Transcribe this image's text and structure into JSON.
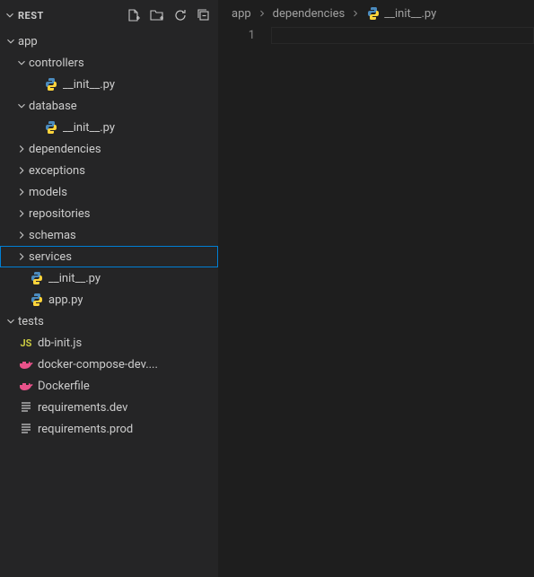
{
  "explorer": {
    "title": "REST",
    "tree": [
      {
        "label": "app",
        "kind": "folder",
        "expanded": true,
        "indent": 0
      },
      {
        "label": "controllers",
        "kind": "folder",
        "expanded": true,
        "indent": 1
      },
      {
        "label": "__init__.py",
        "kind": "python",
        "indent": 2
      },
      {
        "label": "database",
        "kind": "folder",
        "expanded": true,
        "indent": 1
      },
      {
        "label": "__init__.py",
        "kind": "python",
        "indent": 2
      },
      {
        "label": "dependencies",
        "kind": "folder",
        "expanded": false,
        "indent": 1
      },
      {
        "label": "exceptions",
        "kind": "folder",
        "expanded": false,
        "indent": 1
      },
      {
        "label": "models",
        "kind": "folder",
        "expanded": false,
        "indent": 1
      },
      {
        "label": "repositories",
        "kind": "folder",
        "expanded": false,
        "indent": 1
      },
      {
        "label": "schemas",
        "kind": "folder",
        "expanded": false,
        "indent": 1
      },
      {
        "label": "services",
        "kind": "folder",
        "expanded": false,
        "indent": 1,
        "selected": true
      },
      {
        "label": "__init__.py",
        "kind": "python",
        "indent": 1
      },
      {
        "label": "app.py",
        "kind": "python",
        "indent": 1
      },
      {
        "label": "tests",
        "kind": "folder",
        "expanded": true,
        "indent": 0
      },
      {
        "label": "db-init.js",
        "kind": "js",
        "indent": 0
      },
      {
        "label": "docker-compose-dev....",
        "kind": "docker",
        "indent": 0
      },
      {
        "label": "Dockerfile",
        "kind": "docker",
        "indent": 0
      },
      {
        "label": "requirements.dev",
        "kind": "text",
        "indent": 0
      },
      {
        "label": "requirements.prod",
        "kind": "text",
        "indent": 0
      }
    ]
  },
  "breadcrumb": {
    "parts": [
      {
        "label": "app"
      },
      {
        "label": "dependencies"
      },
      {
        "label": "__init__.py",
        "icon": "python"
      }
    ]
  },
  "editor": {
    "line_number": "1"
  },
  "colors": {
    "python": "#4b8bbe",
    "js": "#cbcb41",
    "docker": "#e8528a",
    "dockerfile": "#0db7ed",
    "text": "#cccccc",
    "chevron": "#c5c5c5"
  }
}
